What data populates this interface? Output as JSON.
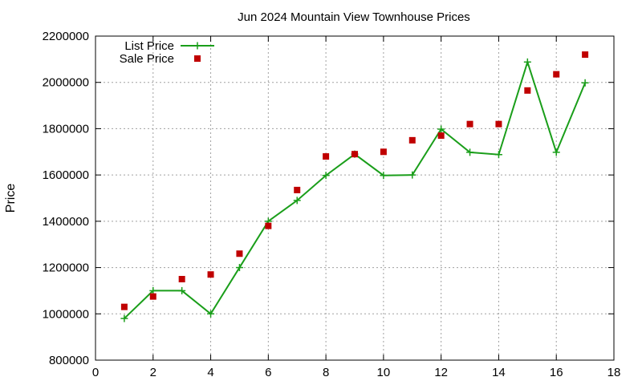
{
  "chart_data": {
    "type": "line",
    "title": "Jun 2024 Mountain View Townhouse Prices",
    "xlabel": "",
    "ylabel": "Price",
    "xlim": [
      0,
      18
    ],
    "ylim": [
      800000,
      2200000
    ],
    "x_ticks": [
      0,
      2,
      4,
      6,
      8,
      10,
      12,
      14,
      16,
      18
    ],
    "y_ticks": [
      800000,
      1000000,
      1200000,
      1400000,
      1600000,
      1800000,
      2000000,
      2200000
    ],
    "grid": true,
    "legend_position": "top-left",
    "series": [
      {
        "name": "List Price",
        "style": "line-with-plus-markers",
        "color": "#1a9e1a",
        "x": [
          1,
          2,
          3,
          4,
          5,
          6,
          7,
          8,
          9,
          10,
          11,
          12,
          13,
          14,
          15,
          16,
          17
        ],
        "y": [
          980000,
          1100000,
          1100000,
          1000000,
          1200000,
          1400000,
          1490000,
          1598000,
          1690000,
          1598000,
          1600000,
          1798000,
          1698000,
          1688000,
          2088000,
          1698000,
          1998000
        ]
      },
      {
        "name": "Sale Price",
        "style": "square-markers",
        "color": "#c00000",
        "x": [
          1,
          2,
          3,
          4,
          5,
          6,
          7,
          8,
          9,
          10,
          11,
          12,
          13,
          14,
          15,
          16,
          17
        ],
        "y": [
          1030000,
          1075000,
          1150000,
          1170000,
          1260000,
          1380000,
          1535000,
          1680000,
          1690000,
          1700000,
          1750000,
          1770000,
          1820000,
          1820000,
          1965000,
          2035000,
          2120000
        ]
      }
    ]
  }
}
